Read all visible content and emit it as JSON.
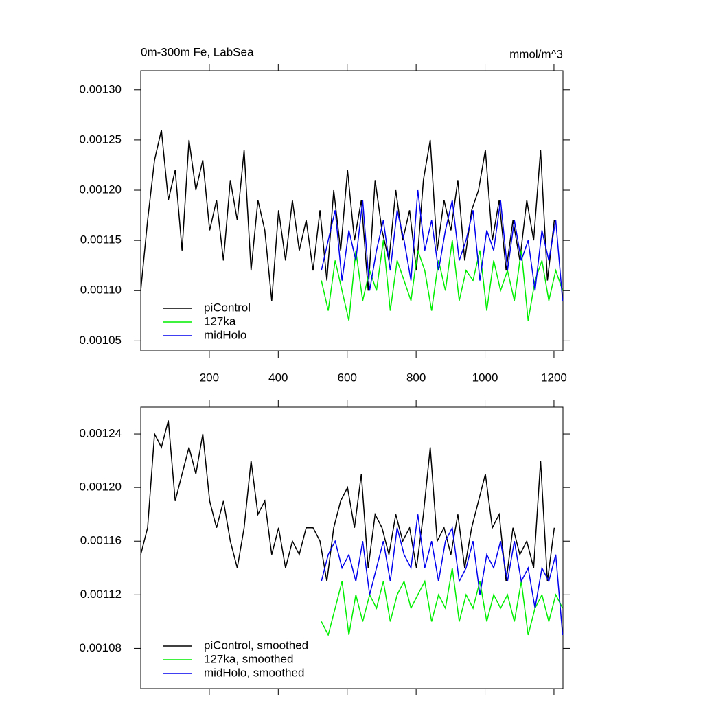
{
  "chart_data": [
    {
      "type": "line",
      "title": "0m-300m Fe, LabSea",
      "units": "mmol/m^3",
      "xlim": [
        1,
        1226
      ],
      "xticks": [
        200,
        400,
        600,
        800,
        1000,
        1200
      ],
      "xtick_labels": true,
      "ylim": [
        0.00104,
        0.001319
      ],
      "yticks": [
        {
          "value": 0.00105,
          "label": "0.00105"
        },
        {
          "value": 0.0011,
          "label": "0.00110"
        },
        {
          "value": 0.00115,
          "label": "0.00115"
        },
        {
          "value": 0.0012,
          "label": "0.00120"
        },
        {
          "value": 0.00125,
          "label": "0.00125"
        },
        {
          "value": 0.0013,
          "label": "0.00130"
        }
      ],
      "legend": "lower-left",
      "series": [
        {
          "name": "piControl",
          "color": "#000000",
          "x": [
            1,
            21,
            41,
            61,
            81,
            101,
            121,
            141,
            161,
            181,
            201,
            221,
            241,
            261,
            281,
            301,
            321,
            341,
            361,
            381,
            401,
            421,
            441,
            461,
            481,
            501,
            521,
            541,
            561,
            581,
            601,
            621,
            641,
            661,
            681,
            701,
            721,
            741,
            761,
            781,
            801,
            821,
            841,
            861,
            881,
            901,
            921,
            941,
            961,
            981,
            1001,
            1021,
            1041,
            1061,
            1081,
            1101,
            1121,
            1141,
            1161,
            1181,
            1201
          ],
          "values": [
            0.0011,
            0.00117,
            0.00123,
            0.00126,
            0.00119,
            0.00122,
            0.00114,
            0.00125,
            0.0012,
            0.00123,
            0.00116,
            0.00119,
            0.00113,
            0.00121,
            0.00117,
            0.00124,
            0.00112,
            0.00119,
            0.00116,
            0.00109,
            0.00118,
            0.00113,
            0.00119,
            0.00114,
            0.00117,
            0.00112,
            0.00118,
            0.00111,
            0.0012,
            0.00114,
            0.00122,
            0.00115,
            0.00119,
            0.0011,
            0.00121,
            0.00116,
            0.00113,
            0.0012,
            0.00115,
            0.00118,
            0.00112,
            0.00121,
            0.00125,
            0.00114,
            0.00119,
            0.00116,
            0.00121,
            0.00113,
            0.00118,
            0.0012,
            0.00124,
            0.00115,
            0.00119,
            0.00112,
            0.00117,
            0.00113,
            0.00119,
            0.00115,
            0.00124,
            0.00111,
            0.00117
          ]
        },
        {
          "name": "127ka",
          "color": "#00ee00",
          "x": [
            525,
            545,
            565,
            585,
            605,
            625,
            645,
            665,
            685,
            705,
            725,
            745,
            765,
            785,
            805,
            825,
            845,
            865,
            885,
            905,
            925,
            945,
            965,
            985,
            1005,
            1025,
            1045,
            1065,
            1085,
            1105,
            1125,
            1145,
            1165,
            1185,
            1205,
            1225
          ],
          "values": [
            0.00111,
            0.00108,
            0.00113,
            0.0011,
            0.00107,
            0.00114,
            0.00109,
            0.00112,
            0.0011,
            0.00115,
            0.00108,
            0.00113,
            0.00111,
            0.00109,
            0.00114,
            0.00112,
            0.00108,
            0.00113,
            0.0011,
            0.00115,
            0.00109,
            0.00112,
            0.00111,
            0.00114,
            0.00108,
            0.00113,
            0.0011,
            0.00112,
            0.00109,
            0.00114,
            0.00107,
            0.00111,
            0.00113,
            0.00109,
            0.00112,
            0.0011
          ]
        },
        {
          "name": "midHolo",
          "color": "#0000ee",
          "x": [
            525,
            545,
            565,
            585,
            605,
            625,
            645,
            665,
            685,
            705,
            725,
            745,
            765,
            785,
            805,
            825,
            845,
            865,
            885,
            905,
            925,
            945,
            965,
            985,
            1005,
            1025,
            1045,
            1065,
            1085,
            1105,
            1125,
            1145,
            1165,
            1185,
            1205,
            1225
          ],
          "values": [
            0.00112,
            0.00115,
            0.00118,
            0.00111,
            0.00116,
            0.00113,
            0.00119,
            0.0011,
            0.00114,
            0.00117,
            0.00112,
            0.00118,
            0.00115,
            0.00111,
            0.0012,
            0.00114,
            0.00117,
            0.00112,
            0.00116,
            0.00119,
            0.00113,
            0.00115,
            0.00118,
            0.00111,
            0.00116,
            0.00114,
            0.00119,
            0.00112,
            0.00117,
            0.00113,
            0.00115,
            0.0011,
            0.00116,
            0.00113,
            0.00117,
            0.00109
          ]
        }
      ]
    },
    {
      "type": "line",
      "xlim": [
        1,
        1226
      ],
      "xticks": [
        200,
        400,
        600,
        800,
        1000,
        1200
      ],
      "xtick_labels": false,
      "ylim": [
        0.00105,
        0.00126
      ],
      "yticks": [
        {
          "value": 0.00108,
          "label": "0.00108"
        },
        {
          "value": 0.00112,
          "label": "0.00112"
        },
        {
          "value": 0.00116,
          "label": "0.00116"
        },
        {
          "value": 0.0012,
          "label": "0.00120"
        },
        {
          "value": 0.00124,
          "label": "0.00124"
        }
      ],
      "legend": "lower-left",
      "series": [
        {
          "name": "piControl, smoothed",
          "color": "#000000",
          "x": [
            1,
            21,
            41,
            61,
            81,
            101,
            121,
            141,
            161,
            181,
            201,
            221,
            241,
            261,
            281,
            301,
            321,
            341,
            361,
            381,
            401,
            421,
            441,
            461,
            481,
            501,
            521,
            541,
            561,
            581,
            601,
            621,
            641,
            661,
            681,
            701,
            721,
            741,
            761,
            781,
            801,
            821,
            841,
            861,
            881,
            901,
            921,
            941,
            961,
            981,
            1001,
            1021,
            1041,
            1061,
            1081,
            1101,
            1121,
            1141,
            1161,
            1181,
            1201
          ],
          "values": [
            0.00115,
            0.00117,
            0.00124,
            0.00123,
            0.00125,
            0.00119,
            0.00121,
            0.00123,
            0.00121,
            0.00124,
            0.00119,
            0.00117,
            0.00119,
            0.00116,
            0.00114,
            0.00117,
            0.00122,
            0.00118,
            0.00119,
            0.00115,
            0.00117,
            0.00114,
            0.00116,
            0.00115,
            0.00117,
            0.00117,
            0.00116,
            0.00113,
            0.00117,
            0.00119,
            0.0012,
            0.00117,
            0.00121,
            0.00114,
            0.00118,
            0.00117,
            0.00115,
            0.00118,
            0.00116,
            0.00117,
            0.00114,
            0.00118,
            0.00123,
            0.00116,
            0.00117,
            0.00115,
            0.00118,
            0.00114,
            0.00117,
            0.00119,
            0.00121,
            0.00117,
            0.00118,
            0.00113,
            0.00117,
            0.00115,
            0.00116,
            0.00114,
            0.00122,
            0.00113,
            0.00117
          ]
        },
        {
          "name": "127ka, smoothed",
          "color": "#00ee00",
          "x": [
            525,
            545,
            565,
            585,
            605,
            625,
            645,
            665,
            685,
            705,
            725,
            745,
            765,
            785,
            805,
            825,
            845,
            865,
            885,
            905,
            925,
            945,
            965,
            985,
            1005,
            1025,
            1045,
            1065,
            1085,
            1105,
            1125,
            1145,
            1165,
            1185,
            1205,
            1225
          ],
          "values": [
            0.0011,
            0.00109,
            0.00111,
            0.00113,
            0.00109,
            0.00112,
            0.0011,
            0.00112,
            0.00111,
            0.00113,
            0.0011,
            0.00112,
            0.00113,
            0.00111,
            0.00112,
            0.00113,
            0.0011,
            0.00112,
            0.00111,
            0.00114,
            0.0011,
            0.00112,
            0.00111,
            0.00113,
            0.0011,
            0.00112,
            0.00111,
            0.00112,
            0.0011,
            0.00113,
            0.00109,
            0.00111,
            0.00112,
            0.0011,
            0.00112,
            0.00111
          ]
        },
        {
          "name": "midHolo, smoothed",
          "color": "#0000ee",
          "x": [
            525,
            545,
            565,
            585,
            605,
            625,
            645,
            665,
            685,
            705,
            725,
            745,
            765,
            785,
            805,
            825,
            845,
            865,
            885,
            905,
            925,
            945,
            965,
            985,
            1005,
            1025,
            1045,
            1065,
            1085,
            1105,
            1125,
            1145,
            1165,
            1185,
            1205,
            1225
          ],
          "values": [
            0.00113,
            0.00115,
            0.00116,
            0.00114,
            0.00115,
            0.00113,
            0.00116,
            0.00112,
            0.00114,
            0.00116,
            0.00113,
            0.00117,
            0.00115,
            0.00114,
            0.00118,
            0.00114,
            0.00116,
            0.00113,
            0.00116,
            0.00117,
            0.00113,
            0.00114,
            0.00116,
            0.00112,
            0.00115,
            0.00114,
            0.00116,
            0.00113,
            0.00116,
            0.00113,
            0.00114,
            0.00111,
            0.00114,
            0.00113,
            0.00115,
            0.00109
          ]
        }
      ]
    }
  ]
}
